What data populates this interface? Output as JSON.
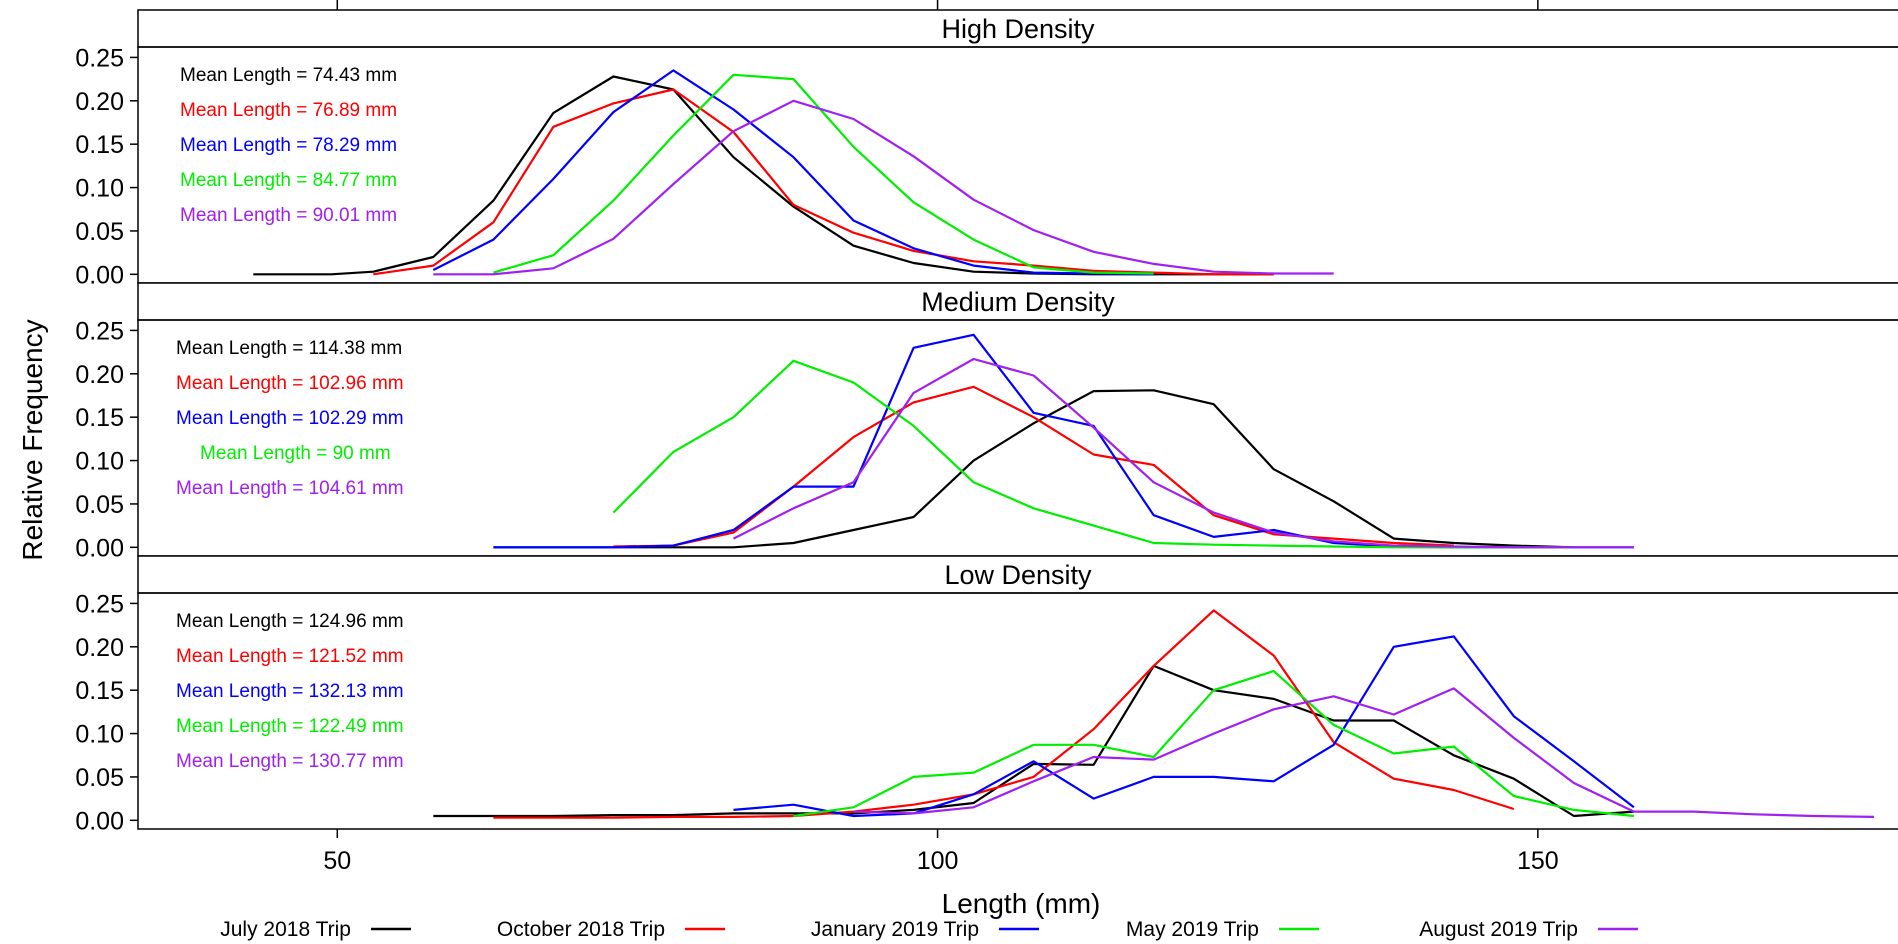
{
  "chart_data": {
    "type": "line",
    "xlabel": "Length (mm)",
    "ylabel": "Relative Frequency",
    "xlim": [
      33.4,
      180
    ],
    "xticks": [
      50,
      100,
      150
    ],
    "ylim": [
      -0.01,
      0.262
    ],
    "yticks": [
      "0.00",
      "0.05",
      "0.10",
      "0.15",
      "0.20",
      "0.25"
    ],
    "grid": false,
    "legend_position": "bottom",
    "legend": [
      {
        "label": "July 2018 Trip",
        "color": "#000000"
      },
      {
        "label": "October 2018 Trip",
        "color": "#ff0000"
      },
      {
        "label": "January 2019 Trip",
        "color": "#0000ff"
      },
      {
        "label": "May 2019 Trip",
        "color": "#00ee00"
      },
      {
        "label": "August 2019 Trip",
        "color": "#a020f0"
      }
    ],
    "panels": [
      {
        "title": "High Density",
        "annotations": [
          {
            "text": "Mean Length = 74.43 mm",
            "color": "#000000"
          },
          {
            "text": "Mean Length = 76.89 mm",
            "color": "#ff0000"
          },
          {
            "text": "Mean Length = 78.29 mm",
            "color": "#0000ff"
          },
          {
            "text": "Mean Length = 84.77 mm",
            "color": "#00ee00"
          },
          {
            "text": "Mean Length = 90.01 mm",
            "color": "#a020f0"
          }
        ],
        "series": [
          {
            "trip": 0,
            "x": [
              43,
              49.5,
              53,
              58,
              63,
              68,
              73,
              78,
              83,
              88,
              93,
              98,
              103,
              108,
              113,
              118,
              123,
              128
            ],
            "y": [
              0,
              0,
              0.003,
              0.02,
              0.085,
              0.186,
              0.228,
              0.213,
              0.135,
              0.078,
              0.033,
              0.013,
              0.003,
              0.001,
              0,
              0,
              0,
              0
            ]
          },
          {
            "trip": 1,
            "x": [
              53,
              58,
              63,
              68,
              73,
              78,
              83,
              88,
              93,
              98,
              103,
              108,
              113,
              118,
              123,
              128
            ],
            "y": [
              0,
              0.01,
              0.06,
              0.17,
              0.197,
              0.213,
              0.164,
              0.08,
              0.048,
              0.027,
              0.015,
              0.01,
              0.004,
              0.002,
              0,
              0
            ]
          },
          {
            "trip": 2,
            "x": [
              58,
              63,
              68,
              73,
              78,
              83,
              88,
              93,
              98,
              103,
              108,
              113,
              118
            ],
            "y": [
              0.005,
              0.04,
              0.11,
              0.187,
              0.235,
              0.19,
              0.135,
              0.062,
              0.03,
              0.01,
              0.002,
              0.001,
              0
            ]
          },
          {
            "trip": 3,
            "x": [
              63,
              68,
              73,
              78,
              83,
              88,
              93,
              98,
              103,
              108,
              113,
              118
            ],
            "y": [
              0.002,
              0.022,
              0.085,
              0.16,
              0.23,
              0.225,
              0.147,
              0.083,
              0.04,
              0.008,
              0.002,
              0.001
            ]
          },
          {
            "trip": 4,
            "x": [
              58,
              63,
              68,
              73,
              78,
              83,
              88,
              93,
              98,
              103,
              108,
              113,
              118,
              123,
              128,
              133
            ],
            "y": [
              0,
              0,
              0.007,
              0.041,
              0.104,
              0.165,
              0.2,
              0.179,
              0.136,
              0.086,
              0.051,
              0.026,
              0.012,
              0.003,
              0.001,
              0.001
            ]
          }
        ]
      },
      {
        "title": "Medium Density",
        "annotations": [
          {
            "text": "Mean Length = 114.38 mm",
            "color": "#000000"
          },
          {
            "text": "Mean Length = 102.96 mm",
            "color": "#ff0000"
          },
          {
            "text": "Mean Length = 102.29 mm",
            "color": "#0000ff"
          },
          {
            "text": "Mean Length = 90 mm",
            "color": "#00ee00"
          },
          {
            "text": "Mean Length = 104.61 mm",
            "color": "#a020f0"
          }
        ],
        "series": [
          {
            "trip": 0,
            "x": [
              63,
              73,
              78,
              83,
              88,
              93,
              98,
              103,
              108,
              113,
              118,
              123,
              128,
              133,
              138,
              143,
              148,
              153
            ],
            "y": [
              0,
              0,
              0,
              0,
              0.005,
              0.02,
              0.035,
              0.1,
              0.143,
              0.18,
              0.181,
              0.165,
              0.09,
              0.053,
              0.01,
              0.005,
              0.002,
              0
            ]
          },
          {
            "trip": 1,
            "x": [
              73,
              78,
              83,
              88,
              93,
              98,
              103,
              108,
              113,
              118,
              123,
              128,
              133,
              138,
              143
            ],
            "y": [
              0.001,
              0.002,
              0.017,
              0.07,
              0.127,
              0.167,
              0.185,
              0.15,
              0.107,
              0.095,
              0.037,
              0.015,
              0.01,
              0.005,
              0.002
            ]
          },
          {
            "trip": 2,
            "x": [
              63,
              73,
              78,
              83,
              88,
              93,
              98,
              103,
              108,
              113,
              118,
              123,
              128,
              133,
              138,
              143,
              148,
              158
            ],
            "y": [
              0,
              0,
              0.002,
              0.02,
              0.07,
              0.07,
              0.23,
              0.245,
              0.155,
              0.14,
              0.037,
              0.012,
              0.02,
              0.005,
              0.001,
              0,
              0,
              0
            ]
          },
          {
            "trip": 3,
            "x": [
              73,
              78,
              83,
              88,
              93,
              98,
              103,
              108,
              113,
              118,
              123,
              128,
              133,
              138,
              143,
              148,
              153
            ],
            "y": [
              0.04,
              0.11,
              0.15,
              0.215,
              0.19,
              0.14,
              0.075,
              0.045,
              0.025,
              0.005,
              0.003,
              0.002,
              0.001,
              0,
              0,
              0,
              0
            ]
          },
          {
            "trip": 4,
            "x": [
              83,
              88,
              93,
              98,
              103,
              108,
              113,
              118,
              123,
              128,
              133,
              138,
              143,
              148,
              153,
              158
            ],
            "y": [
              0.01,
              0.045,
              0.075,
              0.178,
              0.217,
              0.198,
              0.138,
              0.075,
              0.04,
              0.017,
              0.007,
              0.002,
              0.001,
              0,
              0,
              0
            ]
          }
        ]
      },
      {
        "title": "Low Density",
        "annotations": [
          {
            "text": "Mean Length = 124.96 mm",
            "color": "#000000"
          },
          {
            "text": "Mean Length = 121.52 mm",
            "color": "#ff0000"
          },
          {
            "text": "Mean Length = 132.13 mm",
            "color": "#0000ff"
          },
          {
            "text": "Mean Length = 122.49 mm",
            "color": "#00ee00"
          },
          {
            "text": "Mean Length = 130.77 mm",
            "color": "#a020f0"
          }
        ],
        "series": [
          {
            "trip": 0,
            "x": [
              58,
              63,
              68,
              73,
              78,
              83,
              88,
              93,
              98,
              103,
              108,
              113,
              118,
              123,
              128,
              133,
              138,
              143,
              148,
              153,
              158
            ],
            "y": [
              0.005,
              0.005,
              0.005,
              0.006,
              0.006,
              0.008,
              0.008,
              0.008,
              0.012,
              0.02,
              0.065,
              0.064,
              0.178,
              0.15,
              0.14,
              0.115,
              0.115,
              0.075,
              0.048,
              0.005,
              0.01
            ]
          },
          {
            "trip": 1,
            "x": [
              63,
              68,
              73,
              78,
              83,
              88,
              93,
              98,
              103,
              108,
              113,
              118,
              123,
              128,
              133,
              138,
              143,
              148
            ],
            "y": [
              0.003,
              0.003,
              0.003,
              0.004,
              0.004,
              0.005,
              0.01,
              0.018,
              0.03,
              0.05,
              0.105,
              0.178,
              0.242,
              0.19,
              0.09,
              0.048,
              0.035,
              0.013
            ]
          },
          {
            "trip": 2,
            "x": [
              83,
              88,
              93,
              98,
              103,
              108,
              113,
              118,
              123,
              128,
              133,
              138,
              143,
              148,
              153,
              158
            ],
            "y": [
              0.012,
              0.018,
              0.005,
              0.008,
              0.03,
              0.068,
              0.025,
              0.05,
              0.05,
              0.045,
              0.087,
              0.2,
              0.212,
              0.12,
              0.068,
              0.015
            ]
          },
          {
            "trip": 3,
            "x": [
              88,
              93,
              98,
              103,
              108,
              113,
              118,
              123,
              128,
              133,
              138,
              143,
              148,
              153,
              158
            ],
            "y": [
              0.005,
              0.015,
              0.05,
              0.055,
              0.087,
              0.087,
              0.073,
              0.15,
              0.172,
              0.11,
              0.077,
              0.085,
              0.028,
              0.012,
              0.005
            ]
          },
          {
            "trip": 4,
            "x": [
              93,
              98,
              103,
              108,
              113,
              118,
              123,
              128,
              133,
              138,
              143,
              148,
              153,
              158,
              163,
              168,
              173,
              178
            ],
            "y": [
              0.01,
              0.008,
              0.015,
              0.045,
              0.073,
              0.07,
              0.1,
              0.128,
              0.143,
              0.122,
              0.152,
              0.095,
              0.043,
              0.01,
              0.01,
              0.007,
              0.005,
              0.004
            ]
          }
        ]
      }
    ]
  }
}
